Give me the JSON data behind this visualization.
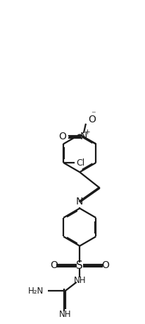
{
  "bg_color": "#ffffff",
  "line_color": "#1a1a1a",
  "line_width": 1.6,
  "dbo": 0.07,
  "figsize": [
    2.06,
    4.58
  ],
  "dpi": 100,
  "xlim": [
    0,
    10
  ],
  "ylim": [
    0,
    22
  ]
}
